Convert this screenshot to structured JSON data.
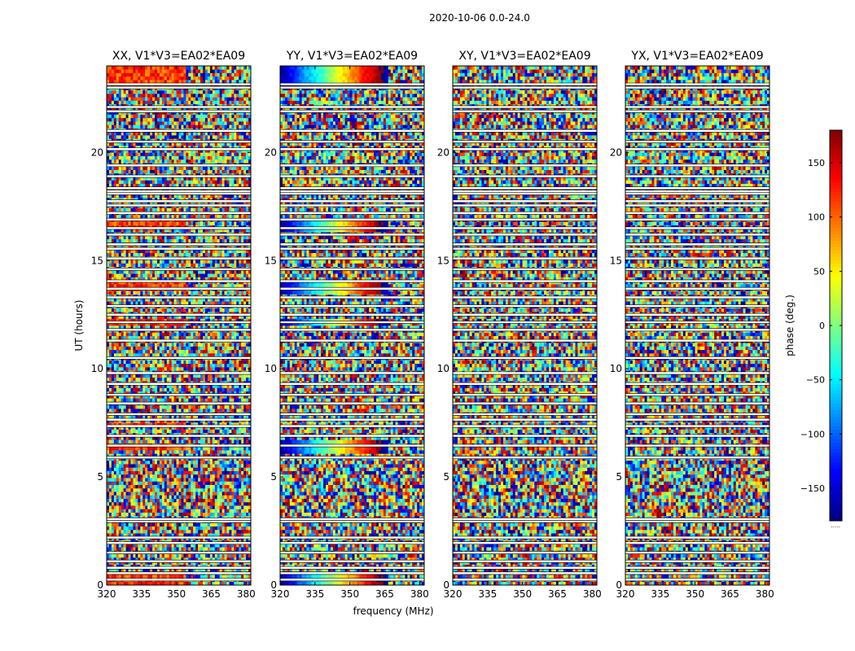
{
  "figure": {
    "suptitle": "2020-10-06 0.0-24.0",
    "xlabel": "frequency (MHz)",
    "ylabel": "UT (hours)"
  },
  "chart_data": {
    "type": "heatmap",
    "title": "2020-10-06 0.0-24.0",
    "xlabel": "frequency (MHz)",
    "ylabel": "UT (hours)",
    "xlim": [
      320,
      382
    ],
    "ylim": [
      0,
      24
    ],
    "xticks": [
      "320",
      "335",
      "350",
      "365",
      "380"
    ],
    "xtick_values": [
      320,
      335,
      350,
      365,
      380
    ],
    "yticks": [
      "0",
      "5",
      "10",
      "15",
      "20"
    ],
    "ytick_values": [
      0,
      5,
      10,
      15,
      20
    ],
    "colorbar": {
      "label": "phase (deg.)",
      "range": [
        -180,
        180
      ],
      "tick_labels": [
        "150",
        "100",
        "50",
        "0",
        "−50",
        "−100",
        "−150"
      ],
      "tick_values": [
        150,
        100,
        50,
        0,
        -50,
        -100,
        -150
      ],
      "colormap": "jet",
      "under_label": "....."
    },
    "panels": [
      {
        "title": "XX, V1*V3=EA02*EA09",
        "mode": "coherent-red"
      },
      {
        "title": "YY, V1*V3=EA02*EA09",
        "mode": "wrapping-phase"
      },
      {
        "title": "XY, V1*V3=EA02*EA09",
        "mode": "noise"
      },
      {
        "title": "YX, V1*V3=EA02*EA09",
        "mode": "noise"
      }
    ],
    "flagged_ut_hours": [
      0.25,
      0.55,
      0.8,
      1.1,
      1.5,
      1.95,
      2.2,
      2.95,
      3.05,
      5.9,
      6.45,
      6.9,
      7.35,
      7.65,
      7.9,
      8.4,
      8.8,
      9.3,
      9.8,
      10.5,
      11.3,
      11.8,
      12.15,
      12.5,
      12.9,
      13.3,
      13.7,
      14.05,
      14.6,
      15.1,
      15.55,
      15.75,
      16.2,
      16.5,
      16.9,
      17.2,
      17.55,
      17.75,
      18.1,
      18.2,
      18.35,
      18.9,
      19.4,
      20.15,
      20.5,
      21.0,
      21.9,
      22.1,
      23.0,
      23.15
    ]
  }
}
